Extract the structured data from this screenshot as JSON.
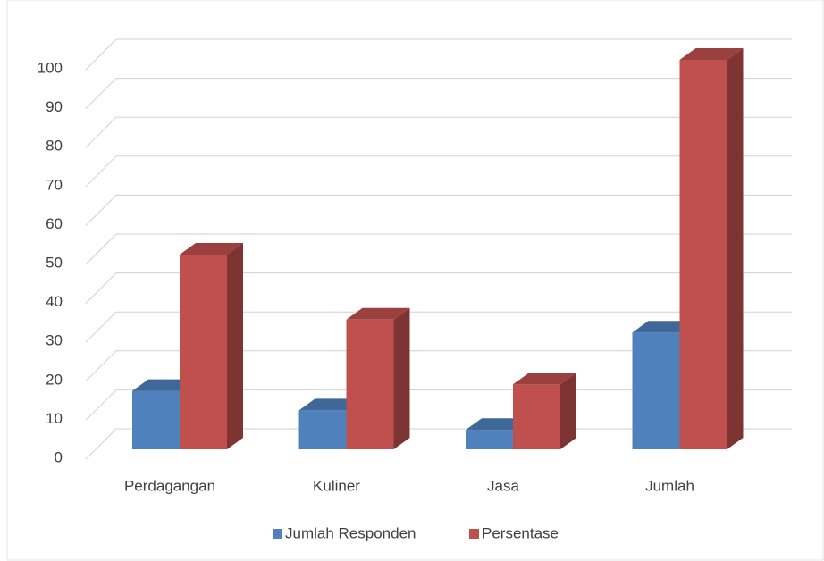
{
  "chart_data": {
    "type": "bar3d",
    "categories": [
      "Perdagangan",
      "Kuliner",
      "Jasa",
      "Jumlah"
    ],
    "series": [
      {
        "name": "Jumlah Responden",
        "color": "#4f81bd",
        "values": [
          15,
          10,
          5,
          30
        ]
      },
      {
        "name": "Persentase",
        "color": "#c0504d",
        "values": [
          50,
          33.3,
          16.7,
          100
        ]
      }
    ],
    "ylim": [
      0,
      100
    ],
    "yticks": [
      0,
      10,
      20,
      30,
      40,
      50,
      60,
      70,
      80,
      90,
      100
    ],
    "grid": true,
    "legend": "bottom"
  }
}
